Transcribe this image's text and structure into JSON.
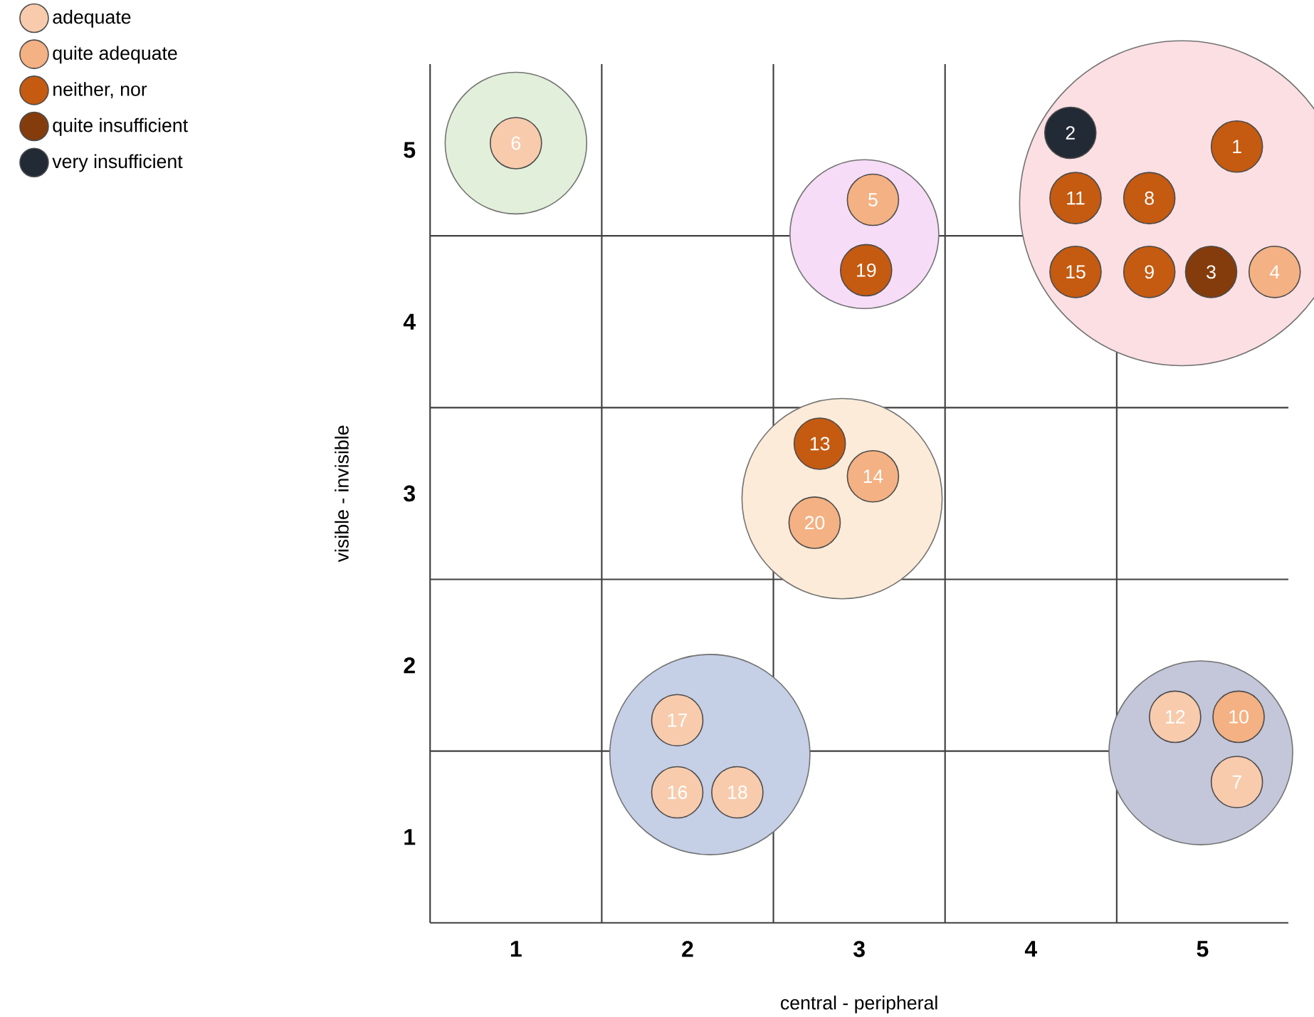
{
  "chart_data": {
    "type": "scatter",
    "xlabel": "central - peripheral",
    "ylabel": "visible - invisible",
    "xlim": [
      0.5,
      5.5
    ],
    "ylim": [
      0.5,
      5.5
    ],
    "xticks": [
      1,
      2,
      3,
      4,
      5
    ],
    "yticks": [
      1,
      2,
      3,
      4,
      5
    ],
    "grid": true,
    "legend": "top left",
    "series": [
      {
        "type": "bubble",
        "x": [
          1.0,
          3.03,
          4.88,
          2.9,
          2.13,
          4.99
        ],
        "values": [
          5.04,
          4.51,
          4.69,
          2.97,
          1.48,
          1.49
        ],
        "sizes": [
          0.19,
          0.21,
          1,
          0.38,
          0.38,
          0.32
        ],
        "colors": [
          "#e2efda",
          "#f6dcf6",
          "#fbdfe3",
          "#fcebd8",
          "#c5cfe6",
          "#c4c6da"
        ]
      },
      {
        "name": "adequate",
        "color": "#f8cbad",
        "x": [
          1.0,
          5.2,
          4.84,
          1.94,
          1.94,
          2.29
        ],
        "values": [
          5.04,
          1.32,
          1.7,
          1.68,
          1.26,
          1.26
        ]
      },
      {
        "name": "quite adequate",
        "color": "#f4b183",
        "x": [
          5.42,
          3.08,
          5.21,
          3.08,
          2.74
        ],
        "values": [
          4.29,
          4.71,
          1.7,
          3.1,
          2.83
        ]
      },
      {
        "name": "neither, nor",
        "color": "#c55a11",
        "x": [
          5.2,
          4.69,
          4.69,
          4.26,
          2.77,
          4.26,
          3.04
        ],
        "values": [
          5.02,
          4.72,
          4.29,
          4.72,
          3.29,
          4.29,
          4.3
        ]
      },
      {
        "name": "quite insufficient",
        "color": "#843c0c",
        "x": [
          5.05
        ],
        "values": [
          4.29
        ]
      },
      {
        "name": "very insufficient",
        "color": "#222a35",
        "x": [
          4.23
        ],
        "values": [
          5.1
        ]
      }
    ],
    "annotations": [
      {
        "text": "1",
        "x": 5.2,
        "y": 5.02
      },
      {
        "text": "2",
        "x": 4.23,
        "y": 5.1
      },
      {
        "text": "3",
        "x": 5.05,
        "y": 4.29
      },
      {
        "text": "4",
        "x": 5.42,
        "y": 4.29
      },
      {
        "text": "5",
        "x": 3.08,
        "y": 4.71
      },
      {
        "text": "6",
        "x": 1.0,
        "y": 5.04
      },
      {
        "text": "7",
        "x": 5.2,
        "y": 1.32
      },
      {
        "text": "8",
        "x": 4.69,
        "y": 4.72
      },
      {
        "text": "9",
        "x": 4.69,
        "y": 4.29
      },
      {
        "text": "10",
        "x": 5.21,
        "y": 1.7
      },
      {
        "text": "11",
        "x": 4.26,
        "y": 4.72
      },
      {
        "text": "12",
        "x": 4.84,
        "y": 1.7
      },
      {
        "text": "13",
        "x": 2.77,
        "y": 3.29
      },
      {
        "text": "14",
        "x": 3.08,
        "y": 3.1
      },
      {
        "text": "15",
        "x": 4.26,
        "y": 4.29
      },
      {
        "text": "16",
        "x": 1.94,
        "y": 1.26
      },
      {
        "text": "17",
        "x": 1.94,
        "y": 1.68
      },
      {
        "text": "18",
        "x": 2.29,
        "y": 1.26
      },
      {
        "text": "19",
        "x": 3.04,
        "y": 4.3
      },
      {
        "text": "20",
        "x": 2.74,
        "y": 2.83
      }
    ]
  }
}
